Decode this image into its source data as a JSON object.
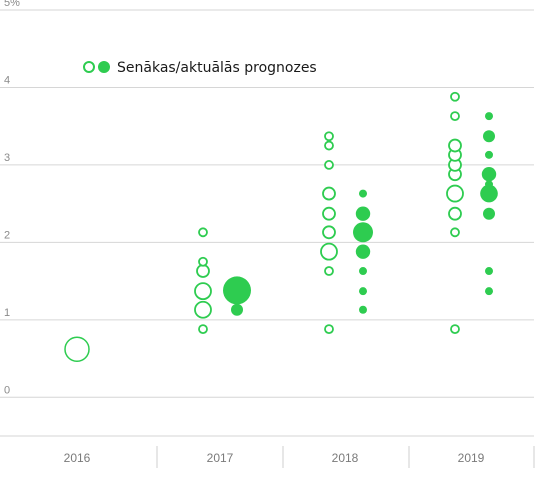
{
  "chart_data": {
    "type": "scatter",
    "y_unit_suffix": "%",
    "ylim": [
      -0.5,
      5
    ],
    "yticks": [
      0,
      1,
      2,
      3,
      4,
      5
    ],
    "grid": true,
    "categories": [
      "2016",
      "2017",
      "2018",
      "2019"
    ],
    "legend": {
      "label": "Senākas/aktuālās prognozes",
      "position": "top-left"
    },
    "colors": {
      "accent": "#2ecc50",
      "grid": "#d6d6d6",
      "axis": "#9a9a9a"
    },
    "series": [
      {
        "style": "hollow",
        "points": [
          {
            "category": "2016",
            "y": 0.62,
            "size": 3
          },
          {
            "category": "2017",
            "y": 0.88,
            "size": 1
          },
          {
            "category": "2017",
            "y": 1.13,
            "size": 2
          },
          {
            "category": "2017",
            "y": 1.37,
            "size": 2
          },
          {
            "category": "2017",
            "y": 1.63,
            "size": 1.5
          },
          {
            "category": "2017",
            "y": 1.75,
            "size": 1
          },
          {
            "category": "2017",
            "y": 2.13,
            "size": 1
          },
          {
            "category": "2018",
            "y": 0.88,
            "size": 1
          },
          {
            "category": "2018",
            "y": 1.63,
            "size": 1
          },
          {
            "category": "2018",
            "y": 1.88,
            "size": 2
          },
          {
            "category": "2018",
            "y": 2.13,
            "size": 1.5
          },
          {
            "category": "2018",
            "y": 2.37,
            "size": 1.5
          },
          {
            "category": "2018",
            "y": 2.63,
            "size": 1.5
          },
          {
            "category": "2018",
            "y": 3.0,
            "size": 1
          },
          {
            "category": "2018",
            "y": 3.25,
            "size": 1
          },
          {
            "category": "2018",
            "y": 3.37,
            "size": 1
          },
          {
            "category": "2019",
            "y": 0.88,
            "size": 1
          },
          {
            "category": "2019",
            "y": 2.13,
            "size": 1
          },
          {
            "category": "2019",
            "y": 2.37,
            "size": 1.5
          },
          {
            "category": "2019",
            "y": 2.63,
            "size": 2
          },
          {
            "category": "2019",
            "y": 2.88,
            "size": 1.5
          },
          {
            "category": "2019",
            "y": 3.0,
            "size": 1.5
          },
          {
            "category": "2019",
            "y": 3.13,
            "size": 1.5
          },
          {
            "category": "2019",
            "y": 3.25,
            "size": 1.5
          },
          {
            "category": "2019",
            "y": 3.63,
            "size": 1
          },
          {
            "category": "2019",
            "y": 3.88,
            "size": 1
          }
        ]
      },
      {
        "style": "filled",
        "points": [
          {
            "category": "2017",
            "y": 1.13,
            "size": 1.5
          },
          {
            "category": "2017",
            "y": 1.38,
            "size": 3.5
          },
          {
            "category": "2018",
            "y": 1.13,
            "size": 1
          },
          {
            "category": "2018",
            "y": 1.37,
            "size": 1
          },
          {
            "category": "2018",
            "y": 1.63,
            "size": 1
          },
          {
            "category": "2018",
            "y": 1.88,
            "size": 1.8
          },
          {
            "category": "2018",
            "y": 2.13,
            "size": 2.5
          },
          {
            "category": "2018",
            "y": 2.37,
            "size": 1.8
          },
          {
            "category": "2018",
            "y": 2.63,
            "size": 1
          },
          {
            "category": "2019",
            "y": 1.37,
            "size": 1
          },
          {
            "category": "2019",
            "y": 1.63,
            "size": 1
          },
          {
            "category": "2019",
            "y": 2.37,
            "size": 1.5
          },
          {
            "category": "2019",
            "y": 2.63,
            "size": 2.2
          },
          {
            "category": "2019",
            "y": 2.75,
            "size": 1
          },
          {
            "category": "2019",
            "y": 2.88,
            "size": 1.8
          },
          {
            "category": "2019",
            "y": 3.13,
            "size": 1
          },
          {
            "category": "2019",
            "y": 3.37,
            "size": 1.5
          },
          {
            "category": "2019",
            "y": 3.63,
            "size": 1
          }
        ]
      }
    ]
  }
}
